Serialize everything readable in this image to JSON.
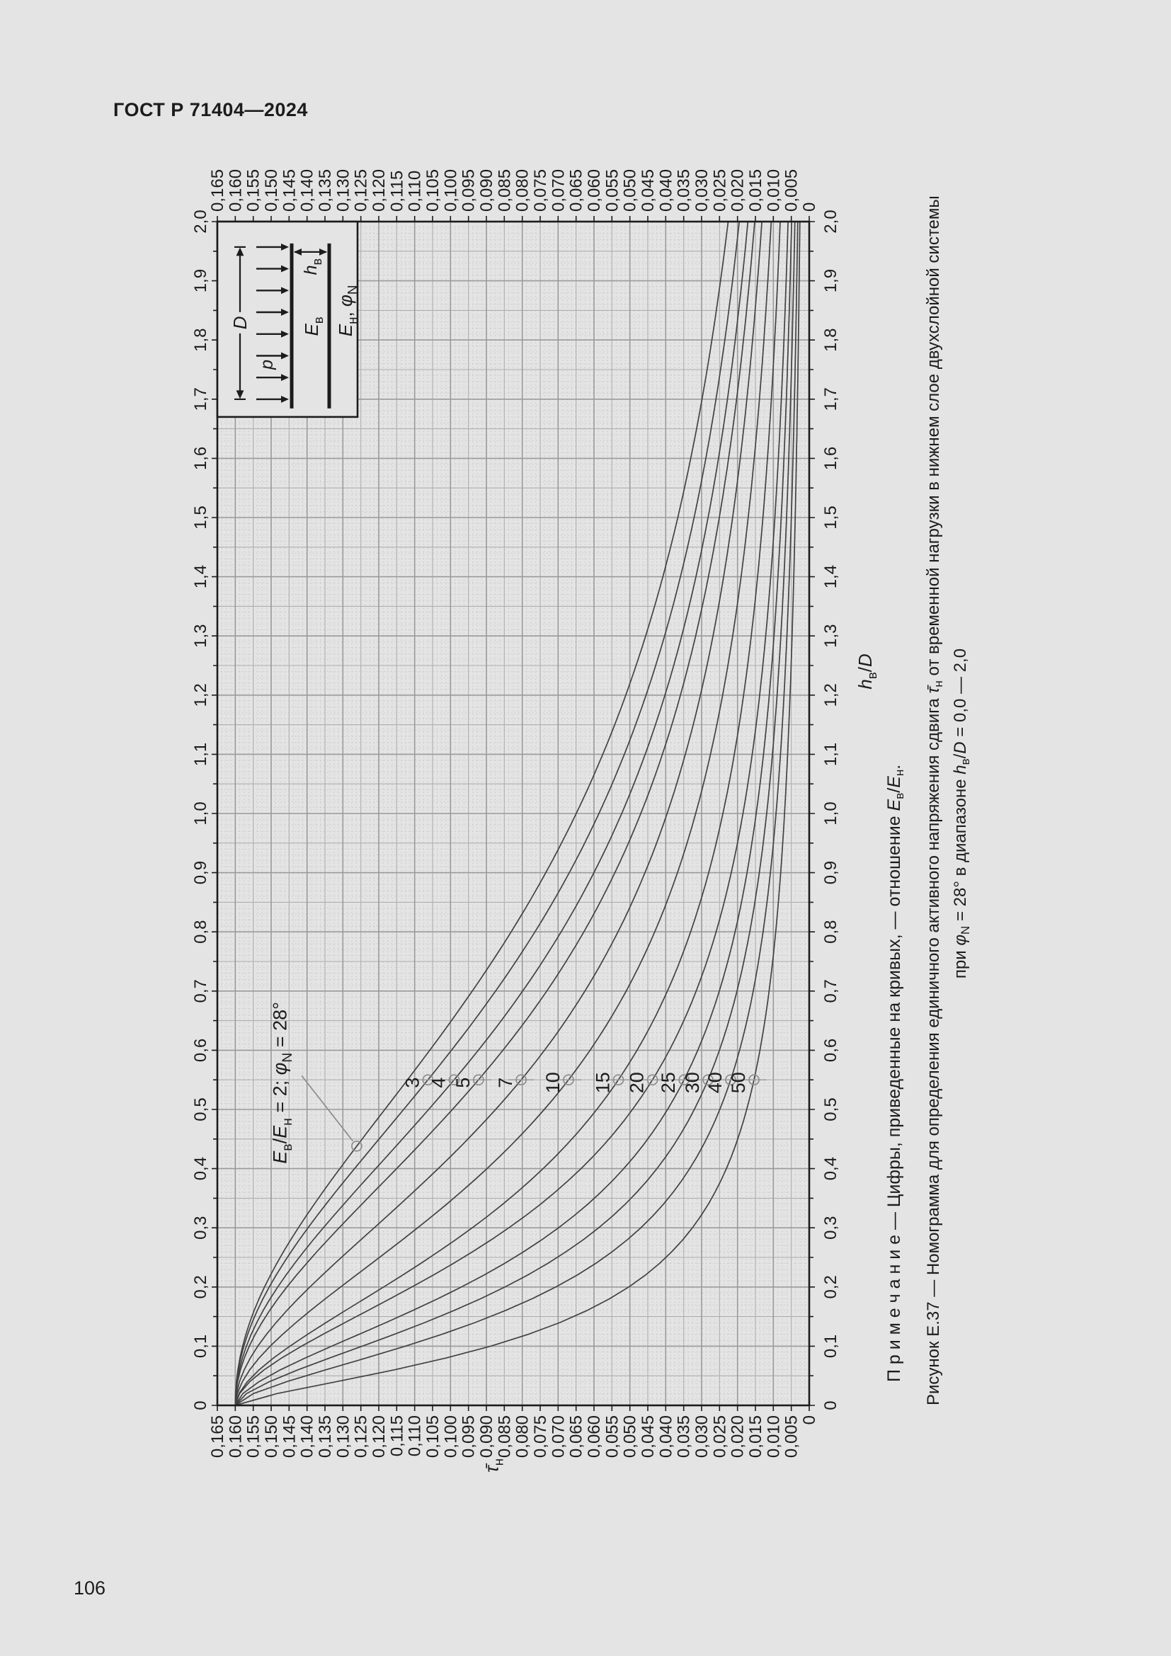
{
  "page": {
    "header": "ГОСТ Р 71404—2024",
    "page_number": "106"
  },
  "figure": {
    "note": "П р и м е ч а н и е — Цифры, приведенные на кривых, — отношение {i:E}{sub:в}/{i:E}{sub:н}.",
    "caption_line1": "Рисунок Е.37 — Номограмма для определения единичного активного напряжения сдвига {i:τ̄}{sub:н} от временной нагрузки в нижнем слое двухслойной системы",
    "caption_line2": "при {i:φ}{sub:N} = 28° в диапазоне {i:h}{sub:в}/{i:D} = 0,0 — 2,0"
  },
  "chart_data": {
    "type": "line",
    "orientation": "rotated_90_ccw_on_page",
    "grid": "fine graph paper, minor dotted + medium + strong gray lines",
    "x_axis": {
      "label": "{i:h}{sub:в}/{i:D}",
      "min": 0,
      "max": 2.0,
      "tick_step": 0.1,
      "tick_labels": [
        "0",
        "0,1",
        "0,2",
        "0,3",
        "0,4",
        "0,5",
        "0,6",
        "0,7",
        "0,8",
        "0,9",
        "1,0",
        "1,1",
        "1,2",
        "1,3",
        "1,4",
        "1,5",
        "1,6",
        "1,7",
        "1,8",
        "1,9",
        "2,0"
      ],
      "labels_on_both_sides": true
    },
    "y_axis": {
      "label": "{i:τ̄}{sub:н}",
      "min": 0,
      "max": 0.165,
      "tick_step": 0.005,
      "tick_labels": [
        "0",
        "0,005",
        "0,010",
        "0,015",
        "0,020",
        "0,025",
        "0,030",
        "0,035",
        "0,040",
        "0,045",
        "0,050",
        "0,055",
        "0,060",
        "0,065",
        "0,070",
        "0,075",
        "0,080",
        "0,085",
        "0,090",
        "0,095",
        "0,100",
        "0,105",
        "0,110",
        "0,115",
        "0,120",
        "0,125",
        "0,130",
        "0,135",
        "0,140",
        "0,145",
        "0,150",
        "0,155",
        "0,160",
        "0,165"
      ],
      "labels_on_both_sides": true
    },
    "series_note": "curves labelled with ratio Eв/Eн; anchors: tau at h=0, tau at h_mid, tau at h=2.0",
    "label_line_h": 0.55,
    "series": [
      {
        "label": "2",
        "show_label": false,
        "tau0": 0.16,
        "h_mid": 0.55,
        "tau_mid": 0.112,
        "tau_end": 0.0226
      },
      {
        "label": "3",
        "show_label": true,
        "tau0": 0.16,
        "h_mid": 0.55,
        "tau_mid": 0.1063,
        "tau_end": 0.0195
      },
      {
        "label": "4",
        "show_label": true,
        "tau0": 0.16,
        "h_mid": 0.55,
        "tau_mid": 0.099,
        "tau_end": 0.0171
      },
      {
        "label": "5",
        "show_label": true,
        "tau0": 0.16,
        "h_mid": 0.55,
        "tau_mid": 0.0922,
        "tau_end": 0.0152
      },
      {
        "label": "7",
        "show_label": true,
        "tau0": 0.16,
        "h_mid": 0.55,
        "tau_mid": 0.0803,
        "tau_end": 0.0132
      },
      {
        "label": "10",
        "show_label": true,
        "tau0": 0.16,
        "h_mid": 0.55,
        "tau_mid": 0.0671,
        "tau_end": 0.0106
      },
      {
        "label": "15",
        "show_label": true,
        "tau0": 0.16,
        "h_mid": 0.55,
        "tau_mid": 0.0532,
        "tau_end": 0.0081
      },
      {
        "label": "20",
        "show_label": true,
        "tau0": 0.16,
        "h_mid": 0.55,
        "tau_mid": 0.0437,
        "tau_end": 0.0059
      },
      {
        "label": "25",
        "show_label": true,
        "tau0": 0.16,
        "h_mid": 0.55,
        "tau_mid": 0.0349,
        "tau_end": 0.0049
      },
      {
        "label": "30",
        "show_label": true,
        "tau0": 0.16,
        "h_mid": 0.55,
        "tau_mid": 0.0282,
        "tau_end": 0.004
      },
      {
        "label": "40",
        "show_label": true,
        "tau0": 0.16,
        "h_mid": 0.55,
        "tau_mid": 0.0219,
        "tau_end": 0.0032
      },
      {
        "label": "50",
        "show_label": true,
        "tau0": 0.16,
        "h_mid": 0.55,
        "tau_mid": 0.0154,
        "tau_end": 0.0026
      }
    ],
    "annotation": {
      "text": "{i:E}{sub:в}/{i:E}{sub:н} = 2; {i:φ}{sub:N} = 28°",
      "text_h": 0.545,
      "text_tau": 0.1475,
      "leader_from_h": 0.557,
      "leader_from_tau": 0.1415,
      "marker_series": "2",
      "marker_h": 0.438
    },
    "inset": {
      "position": "top-right corner of plot, h from 1.67 to 2.0, tau from 0.126 to 0.165",
      "labels": {
        "p": "{i:p}",
        "D": "{i:D}",
        "E_upper": "{i:E}{sub:в}",
        "h_upper": "{i:h}{sub:в}",
        "E_lower": "{i:E}{sub:н}, {i:φ}{sub:N}"
      },
      "arrow_count": 8
    },
    "colors": {
      "paper": "#e4e4e4",
      "ink": "#1c1c1c",
      "curve": "#424242",
      "grid_minor": "#c6c6c6",
      "grid_medium": "#aeaeae",
      "grid_strong": "#9a9a9a",
      "marker": "#8d8d8d"
    }
  }
}
